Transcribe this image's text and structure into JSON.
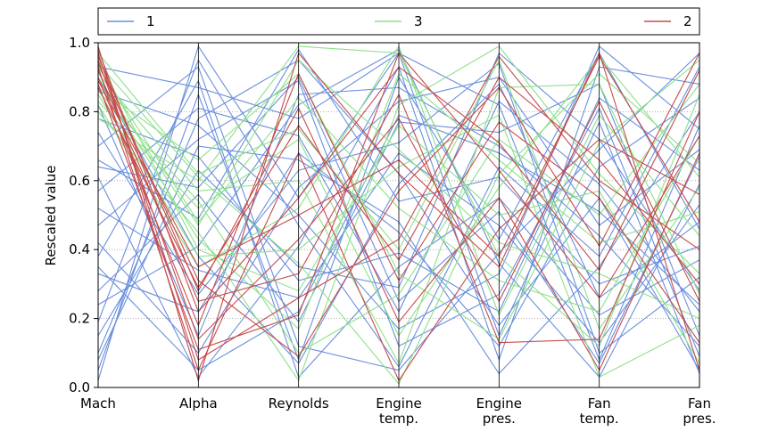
{
  "chart_data": {
    "type": "parallel_coordinates",
    "ylabel": "Rescaled value",
    "ylim": [
      0,
      1
    ],
    "yticks": [
      "0.0",
      "0.2",
      "0.4",
      "0.6",
      "0.8",
      "1.0"
    ],
    "ytick_values": [
      0,
      0.2,
      0.4,
      0.6,
      0.8,
      1.0
    ],
    "grid": "dotted horizontal",
    "axes": [
      [
        "Mach"
      ],
      [
        "Alpha"
      ],
      [
        "Reynolds"
      ],
      [
        "Engine",
        "temp."
      ],
      [
        "Engine",
        "pres."
      ],
      [
        "Fan",
        "temp."
      ],
      [
        "Fan",
        "pres."
      ]
    ],
    "legend": [
      {
        "name": "1",
        "color": "#6a8fdd"
      },
      {
        "name": "3",
        "color": "#8ee08a"
      },
      {
        "name": "2",
        "color": "#c64b4b"
      }
    ],
    "series": [
      {
        "class": "1",
        "lines": [
          [
            0.02,
            0.99,
            0.55,
            0.97,
            0.82,
            0.08,
            0.76
          ],
          [
            0.05,
            0.85,
            0.08,
            0.9,
            0.43,
            0.97,
            0.46
          ],
          [
            0.1,
            0.78,
            0.95,
            0.62,
            0.18,
            0.55,
            0.05
          ],
          [
            0.15,
            0.63,
            0.35,
            0.29,
            0.97,
            0.72,
            0.28
          ],
          [
            0.19,
            0.95,
            0.47,
            0.06,
            0.64,
            0.38,
            0.93
          ],
          [
            0.24,
            0.41,
            0.82,
            0.98,
            0.36,
            0.03,
            0.59
          ],
          [
            0.28,
            0.56,
            0.19,
            0.77,
            0.74,
            0.88,
            0.15
          ],
          [
            0.33,
            0.22,
            0.68,
            0.45,
            0.12,
            0.64,
            0.84
          ],
          [
            0.38,
            0.89,
            0.03,
            0.35,
            0.55,
            0.21,
            0.37
          ],
          [
            0.42,
            0.1,
            0.58,
            0.83,
            0.9,
            0.47,
            0.69
          ],
          [
            0.47,
            0.72,
            0.89,
            0.12,
            0.27,
            0.81,
            0.09
          ],
          [
            0.52,
            0.34,
            0.26,
            0.68,
            0.47,
            0.13,
            0.53
          ],
          [
            0.57,
            0.81,
            0.73,
            0.22,
            0.83,
            0.59,
            0.22
          ],
          [
            0.61,
            0.03,
            0.41,
            0.93,
            0.08,
            0.93,
            0.88
          ],
          [
            0.66,
            0.49,
            0.98,
            0.54,
            0.61,
            0.3,
            0.41
          ],
          [
            0.7,
            0.93,
            0.12,
            0.05,
            0.39,
            0.69,
            0.97
          ],
          [
            0.74,
            0.27,
            0.63,
            0.71,
            0.94,
            0.1,
            0.32
          ],
          [
            0.78,
            0.67,
            0.31,
            0.39,
            0.22,
            0.84,
            0.63
          ],
          [
            0.82,
            0.15,
            0.85,
            0.87,
            0.7,
            0.44,
            0.12
          ],
          [
            0.86,
            0.76,
            0.5,
            0.17,
            0.33,
            0.99,
            0.75
          ],
          [
            0.9,
            0.38,
            0.07,
            0.59,
            0.88,
            0.26,
            0.48
          ],
          [
            0.93,
            0.87,
            0.78,
            0.97,
            0.15,
            0.77,
            0.04
          ],
          [
            0.64,
            0.58,
            0.9,
            0.25,
            0.51,
            0.07,
            0.67
          ],
          [
            0.35,
            0.05,
            0.22,
            0.79,
            0.68,
            0.51,
            0.24
          ],
          [
            0.08,
            0.7,
            0.66,
            0.48,
            0.04,
            0.35,
            0.8
          ]
        ]
      },
      {
        "class": "3",
        "lines": [
          [
            0.78,
            0.6,
            0.99,
            0.97,
            0.38,
            0.12,
            0.85
          ],
          [
            0.8,
            0.45,
            0.02,
            0.82,
            0.99,
            0.62,
            0.33
          ],
          [
            0.83,
            0.52,
            0.72,
            0.15,
            0.58,
            0.96,
            0.61
          ],
          [
            0.85,
            0.38,
            0.4,
            0.64,
            0.79,
            0.03,
            0.18
          ],
          [
            0.87,
            0.66,
            0.91,
            0.33,
            0.14,
            0.71,
            0.95
          ],
          [
            0.89,
            0.43,
            0.17,
            0.91,
            0.66,
            0.42,
            0.51
          ],
          [
            0.91,
            0.57,
            0.6,
            0.07,
            0.87,
            0.88,
            0.27
          ],
          [
            0.93,
            0.48,
            0.84,
            0.52,
            0.31,
            0.22,
            0.73
          ],
          [
            0.95,
            0.4,
            0.28,
            0.76,
            0.5,
            0.57,
            0.07
          ],
          [
            0.97,
            0.62,
            0.75,
            0.4,
            0.95,
            0.17,
            0.58
          ],
          [
            0.82,
            0.35,
            0.52,
            0.99,
            0.21,
            0.79,
            0.44
          ],
          [
            0.86,
            0.54,
            0.1,
            0.27,
            0.72,
            0.5,
            0.88
          ],
          [
            0.9,
            0.47,
            0.95,
            0.69,
            0.42,
            0.33,
            0.2
          ],
          [
            0.94,
            0.61,
            0.36,
            0.01,
            0.62,
            0.91,
            0.65
          ]
        ]
      },
      {
        "class": "2",
        "lines": [
          [
            0.99,
            0.02,
            0.97,
            0.62,
            0.35,
            0.97,
            0.05
          ],
          [
            0.98,
            0.22,
            0.55,
            0.93,
            0.71,
            0.34,
            0.92
          ],
          [
            0.97,
            0.08,
            0.26,
            0.43,
            0.96,
            0.6,
            0.4
          ],
          [
            0.96,
            0.28,
            0.81,
            0.19,
            0.55,
            0.05,
            0.68
          ],
          [
            0.95,
            0.14,
            0.43,
            0.78,
            0.25,
            0.83,
            0.25
          ],
          [
            0.94,
            0.31,
            0.09,
            0.57,
            0.87,
            0.41,
            0.97
          ],
          [
            0.93,
            0.05,
            0.68,
            0.02,
            0.46,
            0.72,
            0.56
          ],
          [
            0.92,
            0.25,
            0.33,
            0.85,
            0.13,
            0.14,
            0.8
          ],
          [
            0.9,
            0.18,
            0.91,
            0.31,
            0.77,
            0.55,
            0.13
          ],
          [
            0.89,
            0.35,
            0.5,
            0.66,
            0.38,
            0.96,
            0.48
          ],
          [
            0.88,
            0.11,
            0.21,
            0.97,
            0.63,
            0.26,
            0.73
          ],
          [
            0.87,
            0.29,
            0.76,
            0.37,
            0.9,
            0.66,
            0.3
          ]
        ]
      }
    ]
  }
}
